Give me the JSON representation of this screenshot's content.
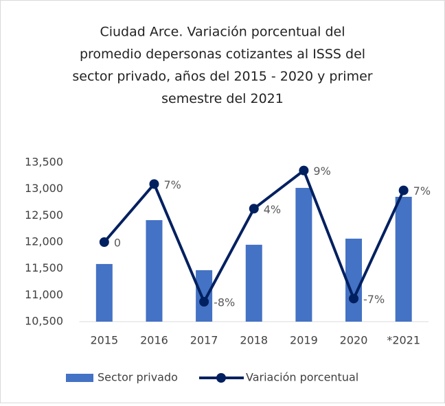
{
  "chart_data": {
    "type": "bar_line",
    "title": [
      "Ciudad Arce. Variación porcentual del",
      "promedio depersonas cotizantes al ISSS del",
      "sector privado, años del 2015 - 2020 y primer",
      "semestre del 2021"
    ],
    "categories": [
      "2015",
      "2016",
      "2017",
      "2018",
      "2019",
      "2020",
      "*2021"
    ],
    "series": [
      {
        "name": "Sector privado",
        "type": "bar",
        "color": "#4472c4",
        "values": [
          11587,
          12414,
          11470,
          11950,
          13022,
          12065,
          12854
        ]
      },
      {
        "name": "Variación porcentual",
        "type": "line",
        "axis": "y2",
        "color": "#002060",
        "values": [
          0,
          7.3,
          -7.5,
          4.2,
          9,
          -7.1,
          6.5
        ],
        "value_labels": [
          "0",
          "7%",
          "-8%",
          "4%",
          "9%",
          "-7%",
          "7%"
        ]
      }
    ],
    "ylim": [
      10500,
      13500
    ],
    "yticks": [
      {
        "value": 10500,
        "label": "10,500"
      },
      {
        "value": 11000,
        "label": "11,000"
      },
      {
        "value": 11500,
        "label": "11,500"
      },
      {
        "value": 12000,
        "label": "12,000"
      },
      {
        "value": 12500,
        "label": "12,500"
      },
      {
        "value": 13000,
        "label": "13,000"
      },
      {
        "value": 13500,
        "label": "13,500"
      }
    ],
    "y2lim": [
      -10,
      10
    ],
    "legend": "bottom"
  }
}
